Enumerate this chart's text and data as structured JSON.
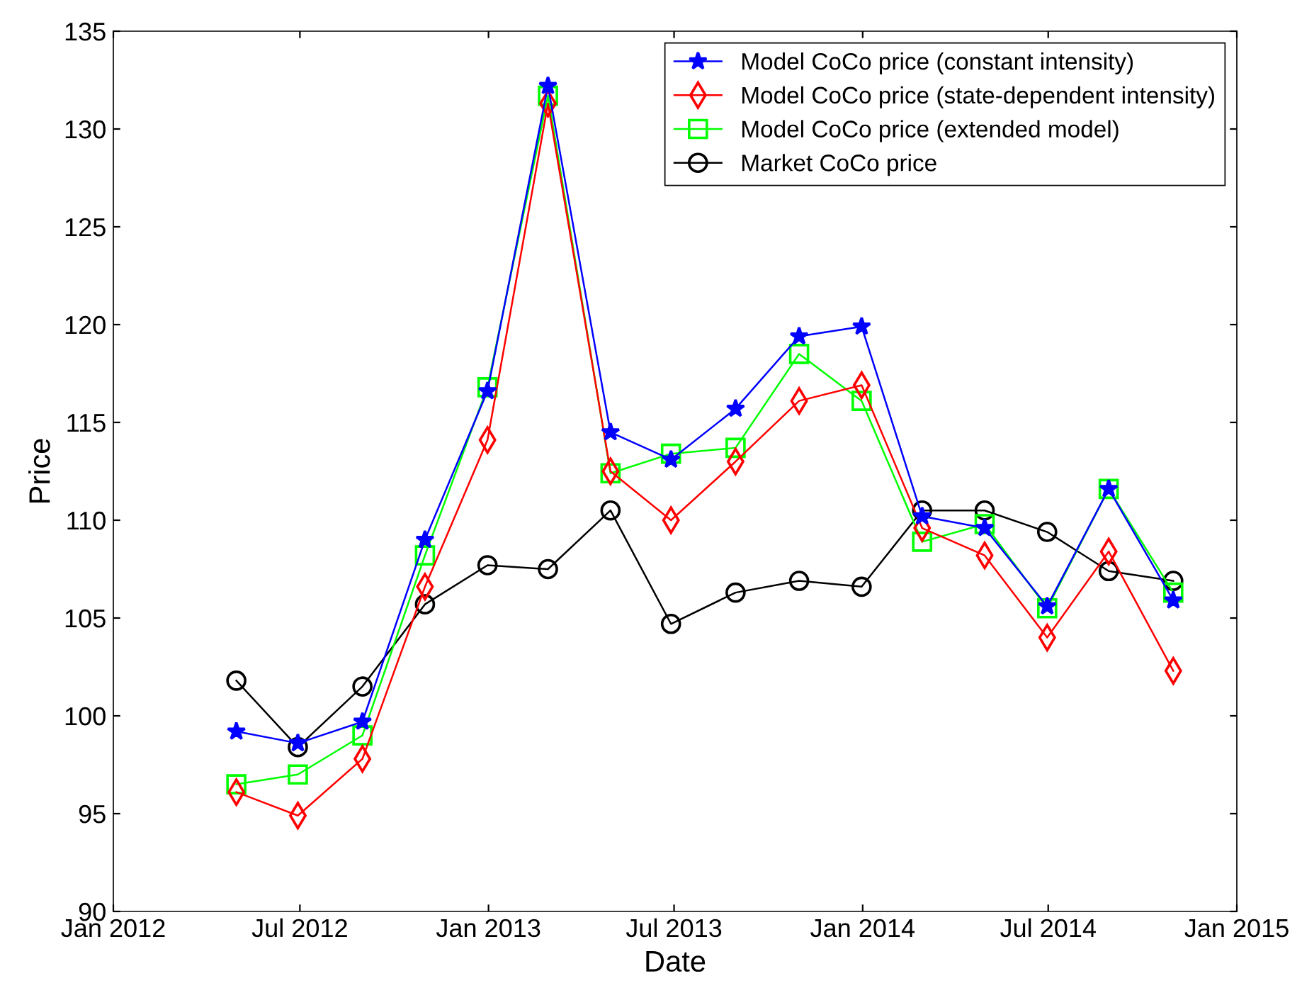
{
  "chart_data": {
    "type": "line",
    "xlabel": "Date",
    "ylabel": "Price",
    "x": [
      "2012-04-30",
      "2012-06-29",
      "2012-08-31",
      "2012-10-31",
      "2012-12-31",
      "2013-02-28",
      "2013-04-30",
      "2013-06-28",
      "2013-08-30",
      "2013-10-31",
      "2013-12-31",
      "2014-02-28",
      "2014-04-30",
      "2014-06-30",
      "2014-08-29",
      "2014-10-31"
    ],
    "series": [
      {
        "name": "Model CoCo price (constant intensity)",
        "color": "#0000ff",
        "marker": "star",
        "values": [
          99.2,
          98.6,
          99.7,
          109.0,
          116.6,
          132.2,
          114.5,
          113.1,
          115.7,
          119.4,
          119.9,
          110.2,
          109.6,
          105.6,
          111.6,
          105.9
        ]
      },
      {
        "name": "Model CoCo price (state-dependent intensity)",
        "color": "#ff0000",
        "marker": "diamond",
        "values": [
          96.1,
          94.9,
          97.8,
          106.6,
          114.1,
          131.3,
          112.5,
          110.0,
          113.0,
          116.1,
          116.9,
          109.6,
          108.2,
          104.0,
          108.4,
          102.3
        ]
      },
      {
        "name": "Model CoCo price (extended model)",
        "color": "#00ff00",
        "marker": "square",
        "values": [
          96.5,
          97.0,
          99.0,
          108.2,
          116.8,
          131.7,
          112.4,
          113.4,
          113.7,
          118.5,
          116.1,
          108.9,
          109.8,
          105.5,
          111.6,
          106.3
        ]
      },
      {
        "name": "Market CoCo price",
        "color": "#000000",
        "marker": "circle",
        "values": [
          101.8,
          98.4,
          101.5,
          105.7,
          107.7,
          107.5,
          110.5,
          104.7,
          106.3,
          106.9,
          106.6,
          110.5,
          110.5,
          109.4,
          107.4,
          106.9
        ]
      }
    ],
    "xlim": [
      "2012-01-01",
      "2015-01-01"
    ],
    "xticks": [
      {
        "value": "2012-01-01",
        "label": "Jan 2012"
      },
      {
        "value": "2012-07-01",
        "label": "Jul 2012"
      },
      {
        "value": "2013-01-01",
        "label": "Jan 2013"
      },
      {
        "value": "2013-07-01",
        "label": "Jul 2013"
      },
      {
        "value": "2014-01-01",
        "label": "Jan 2014"
      },
      {
        "value": "2014-07-01",
        "label": "Jul 2014"
      },
      {
        "value": "2015-01-01",
        "label": "Jan 2015"
      }
    ],
    "ylim": [
      90,
      135
    ],
    "yticks": [
      90,
      95,
      100,
      105,
      110,
      115,
      120,
      125,
      130,
      135
    ],
    "grid": false,
    "legend": "top right",
    "line_style": "solid"
  }
}
